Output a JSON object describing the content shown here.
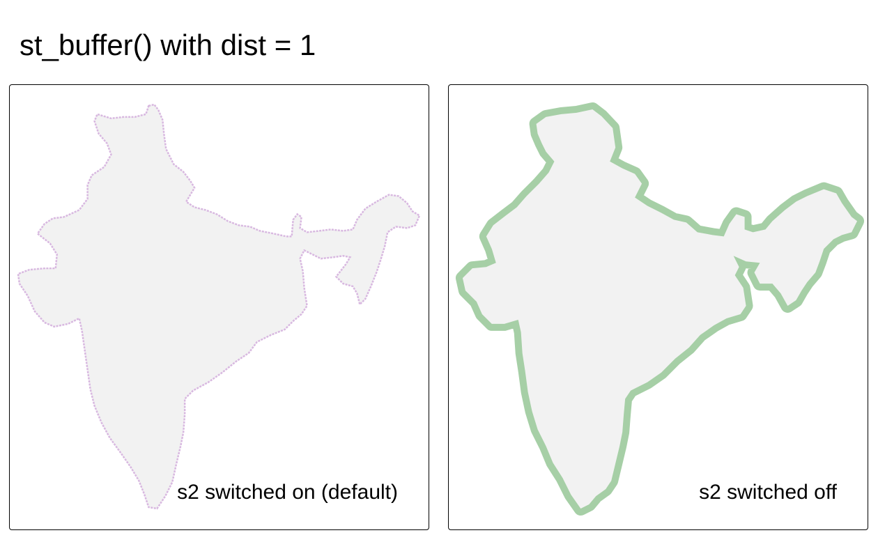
{
  "title": "st_buffer() with dist = 1",
  "panels": [
    {
      "caption": "s2 switched on (default)",
      "fill": "#f2f2f2",
      "outline": "#d8b8e0",
      "outline_style": "thin-jagged"
    },
    {
      "caption": "s2 switched off",
      "fill": "#f2f2f2",
      "outline": "#a6cfa6",
      "outline_style": "thick-buffer"
    }
  ],
  "colors": {
    "land": "#f2f2f2",
    "s2_on_edge": "#d8b8e0",
    "s2_off_buffer": "#a6cfa6",
    "frame": "#000000"
  }
}
